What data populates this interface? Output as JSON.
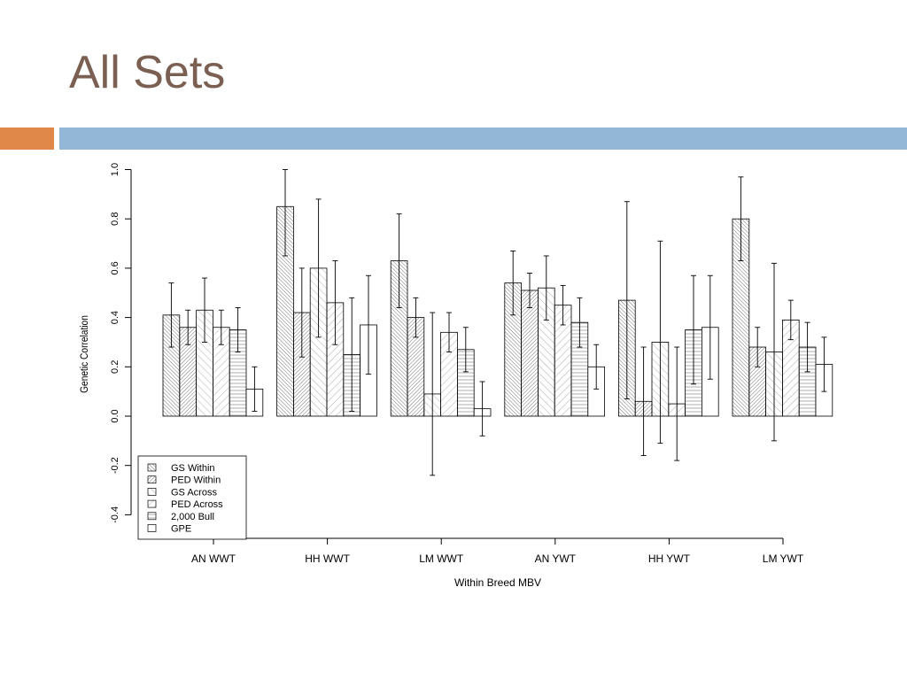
{
  "slide": {
    "title": "All Sets",
    "accent_colors": {
      "orange": "#e0874a",
      "blue": "#93b7d6"
    }
  },
  "chart_data": {
    "type": "bar",
    "xlabel": "Within Breed MBV",
    "ylabel": "Genetic Correlation",
    "ylim": [
      -0.4,
      1.0
    ],
    "yticks": [
      "-0.4",
      "-0.2",
      "0.0",
      "0.2",
      "0.4",
      "0.6",
      "0.8",
      "1.0"
    ],
    "legend_position": "bottom-left",
    "grid": false,
    "categories": [
      "AN WWT",
      "HH WWT",
      "LM WWT",
      "AN YWT",
      "HH YWT",
      "LM YWT"
    ],
    "series": [
      {
        "name": "GS Within",
        "pattern": "dense-backslash",
        "values": [
          0.41,
          0.85,
          0.63,
          0.54,
          0.47,
          0.8
        ],
        "error_low": [
          0.28,
          0.65,
          0.44,
          0.41,
          0.07,
          0.63
        ],
        "error_high": [
          0.54,
          1.0,
          0.82,
          0.67,
          0.87,
          0.97
        ]
      },
      {
        "name": "PED Within",
        "pattern": "dense-slash",
        "values": [
          0.36,
          0.42,
          0.4,
          0.51,
          0.06,
          0.28
        ],
        "error_low": [
          0.29,
          0.24,
          0.32,
          0.44,
          -0.16,
          0.2
        ],
        "error_high": [
          0.43,
          0.6,
          0.48,
          0.58,
          0.28,
          0.36
        ]
      },
      {
        "name": "GS Across",
        "pattern": "sparse-backslash",
        "values": [
          0.43,
          0.6,
          0.09,
          0.52,
          0.3,
          0.26
        ],
        "error_low": [
          0.3,
          0.32,
          -0.24,
          0.39,
          -0.11,
          -0.1
        ],
        "error_high": [
          0.56,
          0.88,
          0.42,
          0.65,
          0.71,
          0.62
        ]
      },
      {
        "name": "PED Across",
        "pattern": "sparse-slash",
        "values": [
          0.36,
          0.46,
          0.34,
          0.45,
          0.05,
          0.39
        ],
        "error_low": [
          0.29,
          0.29,
          0.26,
          0.37,
          -0.18,
          0.31
        ],
        "error_high": [
          0.43,
          0.63,
          0.42,
          0.53,
          0.28,
          0.47
        ]
      },
      {
        "name": "2,000 Bull",
        "pattern": "horizontal",
        "values": [
          0.35,
          0.25,
          0.27,
          0.38,
          0.35,
          0.28
        ],
        "error_low": [
          0.26,
          0.02,
          0.18,
          0.28,
          0.13,
          0.18
        ],
        "error_high": [
          0.44,
          0.48,
          0.36,
          0.48,
          0.57,
          0.38
        ]
      },
      {
        "name": "GPE",
        "pattern": "none",
        "values": [
          0.11,
          0.37,
          0.03,
          0.2,
          0.36,
          0.21
        ],
        "error_low": [
          0.02,
          0.17,
          -0.08,
          0.11,
          0.15,
          0.1
        ],
        "error_high": [
          0.2,
          0.57,
          0.14,
          0.29,
          0.57,
          0.32
        ]
      }
    ]
  }
}
